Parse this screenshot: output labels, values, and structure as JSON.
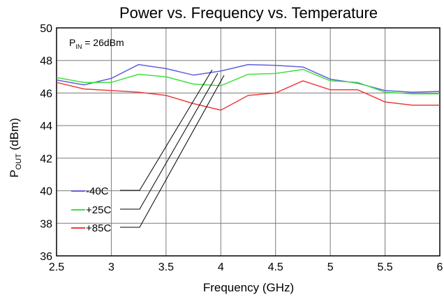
{
  "chart_data": {
    "type": "line",
    "title": "Power vs. Frequency vs. Temperature",
    "xlabel": "Frequency (GHz)",
    "ylabel": "P",
    "ylabel_sub": "OUT",
    "ylabel_unit": " (dBm)",
    "annotation": {
      "main": "P",
      "sub": "IN",
      "rest": " = 26dBm"
    },
    "xlim": [
      2.5,
      6
    ],
    "ylim": [
      36,
      50
    ],
    "xticks": [
      "2.5",
      "3",
      "3.5",
      "4",
      "4.5",
      "5",
      "5.5",
      "6"
    ],
    "yticks": [
      "36",
      "38",
      "40",
      "42",
      "44",
      "46",
      "48",
      "50"
    ],
    "grid": true,
    "legend_position": "bottom-left",
    "x": [
      2.5,
      2.75,
      3,
      3.25,
      3.5,
      3.75,
      4,
      4.25,
      4.5,
      4.75,
      5,
      5.25,
      5.5,
      5.75,
      6
    ],
    "series": [
      {
        "name": "-40C",
        "color": "#6060e0",
        "values": [
          46.8,
          46.5,
          46.9,
          47.75,
          47.5,
          47.1,
          47.35,
          47.75,
          47.7,
          47.6,
          46.85,
          46.6,
          46.15,
          46.05,
          46.1
        ]
      },
      {
        "name": "+25C",
        "color": "#40e040",
        "values": [
          46.95,
          46.65,
          46.65,
          47.15,
          47.0,
          46.55,
          46.45,
          47.15,
          47.2,
          47.45,
          46.75,
          46.65,
          46.05,
          45.95,
          45.95
        ]
      },
      {
        "name": "+85C",
        "color": "#f03c3c",
        "values": [
          46.65,
          46.25,
          46.15,
          46.05,
          45.85,
          45.35,
          44.95,
          45.85,
          46.0,
          46.75,
          46.2,
          46.2,
          45.45,
          45.25,
          45.25
        ]
      }
    ]
  }
}
